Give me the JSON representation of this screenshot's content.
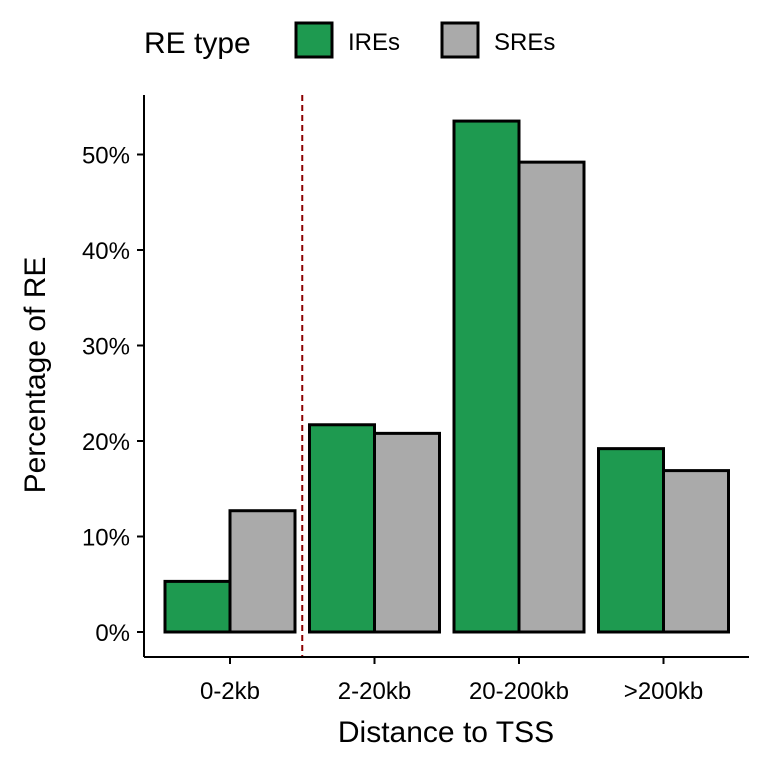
{
  "chart_data": {
    "type": "bar",
    "xlabel": "Distance to TSS",
    "ylabel": "Percentage of RE",
    "categories": [
      "0-2kb",
      "2-20kb",
      "20-200kb",
      ">200kb"
    ],
    "series": [
      {
        "name": "IREs",
        "color": "#1e9a50",
        "values": [
          5.3,
          21.7,
          53.5,
          19.2
        ]
      },
      {
        "name": "SREs",
        "color": "#aaaaaa",
        "values": [
          12.7,
          20.8,
          49.2,
          16.9
        ]
      }
    ],
    "ylim": [
      0,
      55.7
    ],
    "yticks": [
      0,
      10,
      20,
      30,
      40,
      50
    ],
    "ytick_labels": [
      "0%",
      "10%",
      "20%",
      "30%",
      "40%",
      "50%"
    ],
    "legend": {
      "title": "RE type",
      "position": "top"
    },
    "reference_line": {
      "between": [
        "0-2kb",
        "2-20kb"
      ],
      "style": "dashed",
      "color": "#8b0000"
    },
    "grid": false
  }
}
